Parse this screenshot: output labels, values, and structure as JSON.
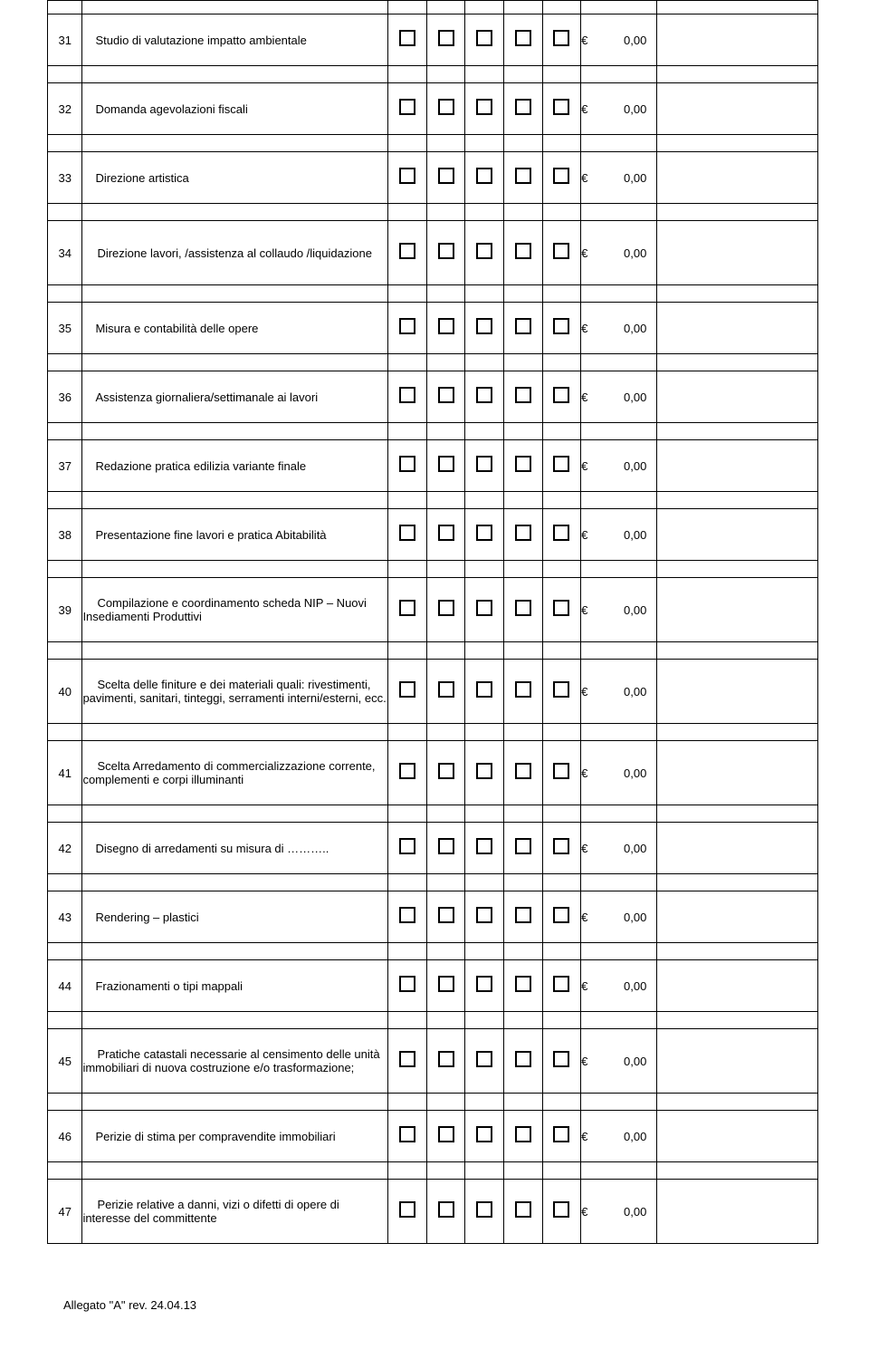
{
  "checkbox_count": 5,
  "currency_prefix": "€",
  "price": "0,00",
  "rows": [
    {
      "num": "31",
      "desc": "Studio di valutazione impatto ambientale",
      "height": "med",
      "indent": false
    },
    {
      "num": "32",
      "desc": "Domanda agevolazioni  fiscali",
      "height": "med",
      "indent": false
    },
    {
      "num": "33",
      "desc": "Direzione artistica",
      "height": "med",
      "indent": false
    },
    {
      "num": "34",
      "desc": "Direzione lavori, /assistenza al collaudo /liquidazione",
      "height": "tall",
      "indent": true
    },
    {
      "num": "35",
      "desc": "Misura e contabilità delle opere",
      "height": "med",
      "indent": false
    },
    {
      "num": "36",
      "desc": "Assistenza  giornaliera/settimanale ai lavori",
      "height": "med",
      "indent": false
    },
    {
      "num": "37",
      "desc": "Redazione pratica edilizia variante finale",
      "height": "med",
      "indent": false
    },
    {
      "num": "38",
      "desc": "Presentazione fine lavori e pratica Abitabilità",
      "height": "med",
      "indent": false
    },
    {
      "num": "39",
      "desc": "Compilazione e coordinamento scheda NIP – Nuovi Insediamenti Produttivi",
      "height": "tall",
      "indent": true
    },
    {
      "num": "40",
      "desc": "Scelta delle finiture e dei materiali quali: rivestimenti, pavimenti, sanitari, tinteggi, serramenti interni/esterni, ecc.",
      "height": "tall",
      "indent": true
    },
    {
      "num": "41",
      "desc": "Scelta Arredamento di commercializzazione corrente, complementi e corpi illuminanti",
      "height": "tall",
      "indent": true
    },
    {
      "num": "42",
      "desc": "Disegno di arredamenti su misura di ………..",
      "height": "med",
      "indent": false
    },
    {
      "num": "43",
      "desc": "Rendering – plastici",
      "height": "med",
      "indent": false
    },
    {
      "num": "44",
      "desc": "Frazionamenti o tipi mappali",
      "height": "med",
      "indent": false
    },
    {
      "num": "45",
      "desc": "Pratiche catastali necessarie al censimento delle unità immobiliari di nuova costruzione e/o trasformazione;",
      "height": "tall",
      "indent": true
    },
    {
      "num": "46",
      "desc": "Perizie di stima per compravendite immobiliari",
      "height": "med",
      "indent": false
    },
    {
      "num": "47",
      "desc": "Perizie relative a danni, vizi o difetti di opere di interesse del committente",
      "height": "tall",
      "indent": true
    }
  ],
  "footer": "Allegato \"A\"  rev. 24.04.13"
}
